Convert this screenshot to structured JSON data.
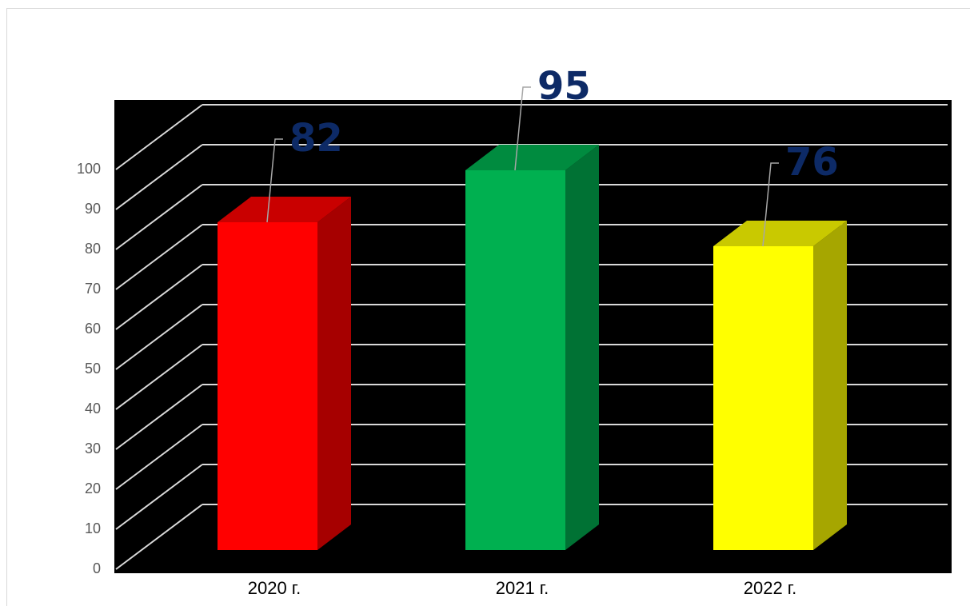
{
  "chart_data": {
    "type": "bar3d",
    "categories": [
      "2020 г.",
      "2021 г.",
      "2022 г."
    ],
    "values": [
      82,
      95,
      76
    ],
    "colors": [
      "#ff0000",
      "#00b050",
      "#ffff00"
    ],
    "ylim": [
      0,
      100
    ],
    "yticks": [
      0,
      10,
      20,
      30,
      40,
      50,
      60,
      70,
      80,
      90,
      100
    ],
    "grid": true
  }
}
